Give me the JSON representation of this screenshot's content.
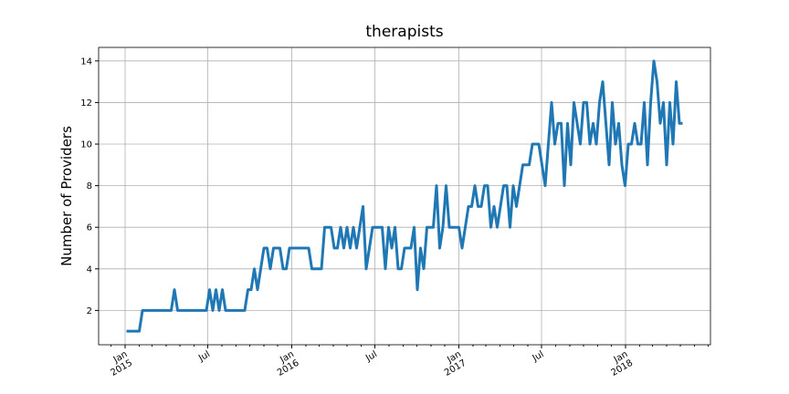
{
  "chart_data": {
    "type": "line",
    "title": "therapists",
    "ylabel": "Number of Providers",
    "x": [
      "2015-01-04",
      "2015-01-11",
      "2015-01-18",
      "2015-01-25",
      "2015-02-01",
      "2015-02-08",
      "2015-02-15",
      "2015-02-22",
      "2015-03-01",
      "2015-03-08",
      "2015-03-15",
      "2015-03-22",
      "2015-03-29",
      "2015-04-05",
      "2015-04-12",
      "2015-04-19",
      "2015-04-26",
      "2015-05-03",
      "2015-05-10",
      "2015-05-17",
      "2015-05-24",
      "2015-05-31",
      "2015-06-07",
      "2015-06-14",
      "2015-06-21",
      "2015-06-28",
      "2015-07-05",
      "2015-07-12",
      "2015-07-19",
      "2015-07-26",
      "2015-08-02",
      "2015-08-09",
      "2015-08-16",
      "2015-08-23",
      "2015-08-30",
      "2015-09-06",
      "2015-09-13",
      "2015-09-20",
      "2015-09-27",
      "2015-10-04",
      "2015-10-11",
      "2015-10-18",
      "2015-10-25",
      "2015-11-01",
      "2015-11-08",
      "2015-11-15",
      "2015-11-22",
      "2015-11-29",
      "2015-12-06",
      "2015-12-13",
      "2015-12-20",
      "2015-12-27",
      "2016-01-03",
      "2016-01-10",
      "2016-01-17",
      "2016-01-24",
      "2016-01-31",
      "2016-02-07",
      "2016-02-14",
      "2016-02-21",
      "2016-02-28",
      "2016-03-06",
      "2016-03-13",
      "2016-03-20",
      "2016-03-27",
      "2016-04-03",
      "2016-04-10",
      "2016-04-17",
      "2016-04-24",
      "2016-05-01",
      "2016-05-08",
      "2016-05-15",
      "2016-05-22",
      "2016-05-29",
      "2016-06-05",
      "2016-06-12",
      "2016-06-19",
      "2016-06-26",
      "2016-07-03",
      "2016-07-10",
      "2016-07-17",
      "2016-07-24",
      "2016-07-31",
      "2016-08-07",
      "2016-08-14",
      "2016-08-21",
      "2016-08-28",
      "2016-09-04",
      "2016-09-11",
      "2016-09-18",
      "2016-09-25",
      "2016-10-02",
      "2016-10-09",
      "2016-10-16",
      "2016-10-23",
      "2016-10-30",
      "2016-11-06",
      "2016-11-13",
      "2016-11-20",
      "2016-11-27",
      "2016-12-04",
      "2016-12-11",
      "2016-12-18",
      "2016-12-25",
      "2017-01-01",
      "2017-01-08",
      "2017-01-15",
      "2017-01-22",
      "2017-01-29",
      "2017-02-05",
      "2017-02-12",
      "2017-02-19",
      "2017-02-26",
      "2017-03-05",
      "2017-03-12",
      "2017-03-19",
      "2017-03-26",
      "2017-04-02",
      "2017-04-09",
      "2017-04-16",
      "2017-04-23",
      "2017-04-30",
      "2017-05-07",
      "2017-05-14",
      "2017-05-21",
      "2017-05-28",
      "2017-06-04",
      "2017-06-11",
      "2017-06-18",
      "2017-06-25",
      "2017-07-02",
      "2017-07-09",
      "2017-07-16",
      "2017-07-23",
      "2017-07-30",
      "2017-08-06",
      "2017-08-13",
      "2017-08-20",
      "2017-08-27",
      "2017-09-03",
      "2017-09-10",
      "2017-09-17",
      "2017-09-24",
      "2017-10-01",
      "2017-10-08",
      "2017-10-15",
      "2017-10-22",
      "2017-10-29",
      "2017-11-05",
      "2017-11-12",
      "2017-11-19",
      "2017-11-26",
      "2017-12-03",
      "2017-12-10",
      "2017-12-17",
      "2017-12-24",
      "2017-12-31",
      "2018-01-07",
      "2018-01-14",
      "2018-01-21",
      "2018-01-28",
      "2018-02-04",
      "2018-02-11",
      "2018-02-18",
      "2018-02-25",
      "2018-03-04",
      "2018-03-11",
      "2018-03-18",
      "2018-03-25",
      "2018-04-01",
      "2018-04-08",
      "2018-04-15",
      "2018-04-22",
      "2018-04-29",
      "2018-05-06"
    ],
    "series": [
      {
        "color": "#1f77b4",
        "values": [
          1,
          1,
          1,
          1,
          1,
          2,
          2,
          2,
          2,
          2,
          2,
          2,
          2,
          2,
          2,
          3,
          2,
          2,
          2,
          2,
          2,
          2,
          2,
          2,
          2,
          2,
          3,
          2,
          3,
          2,
          3,
          2,
          2,
          2,
          2,
          2,
          2,
          2,
          3,
          3,
          4,
          3,
          4,
          5,
          5,
          4,
          5,
          5,
          5,
          4,
          4,
          5,
          5,
          5,
          5,
          5,
          5,
          5,
          4,
          4,
          4,
          4,
          6,
          6,
          6,
          5,
          5,
          6,
          5,
          6,
          5,
          6,
          5,
          6,
          7,
          4,
          5,
          6,
          6,
          6,
          6,
          4,
          6,
          5,
          6,
          4,
          4,
          5,
          5,
          5,
          6,
          3,
          5,
          4,
          6,
          6,
          6,
          8,
          5,
          6,
          8,
          6,
          6,
          6,
          6,
          5,
          6,
          7,
          7,
          8,
          7,
          7,
          8,
          8,
          6,
          7,
          6,
          7,
          8,
          8,
          6,
          8,
          7,
          8,
          9,
          9,
          9,
          10,
          10,
          10,
          9,
          8,
          10,
          12,
          10,
          11,
          11,
          8,
          11,
          9,
          12,
          11,
          10,
          12,
          12,
          10,
          11,
          10,
          12,
          13,
          11,
          9,
          12,
          10,
          11,
          9,
          8,
          10,
          10,
          11,
          10,
          10,
          12,
          9,
          12,
          14,
          13,
          11,
          12,
          9,
          12,
          10,
          13,
          11,
          11
        ]
      }
    ],
    "xlim": [
      "2014-11-04",
      "2018-07-06"
    ],
    "xticks": [
      {
        "value": "2015-01-01",
        "label": "Jan\n2015"
      },
      {
        "value": "2015-07-01",
        "label": "Jul"
      },
      {
        "value": "2016-01-01",
        "label": "Jan\n2016"
      },
      {
        "value": "2016-07-01",
        "label": "Jul"
      },
      {
        "value": "2017-01-01",
        "label": "Jan\n2017"
      },
      {
        "value": "2017-07-01",
        "label": "Jul"
      },
      {
        "value": "2018-01-01",
        "label": "Jan\n2018"
      }
    ],
    "ylim": [
      0.35,
      14.65
    ],
    "yticks": [
      2,
      4,
      6,
      8,
      10,
      12,
      14
    ],
    "grid": true
  }
}
